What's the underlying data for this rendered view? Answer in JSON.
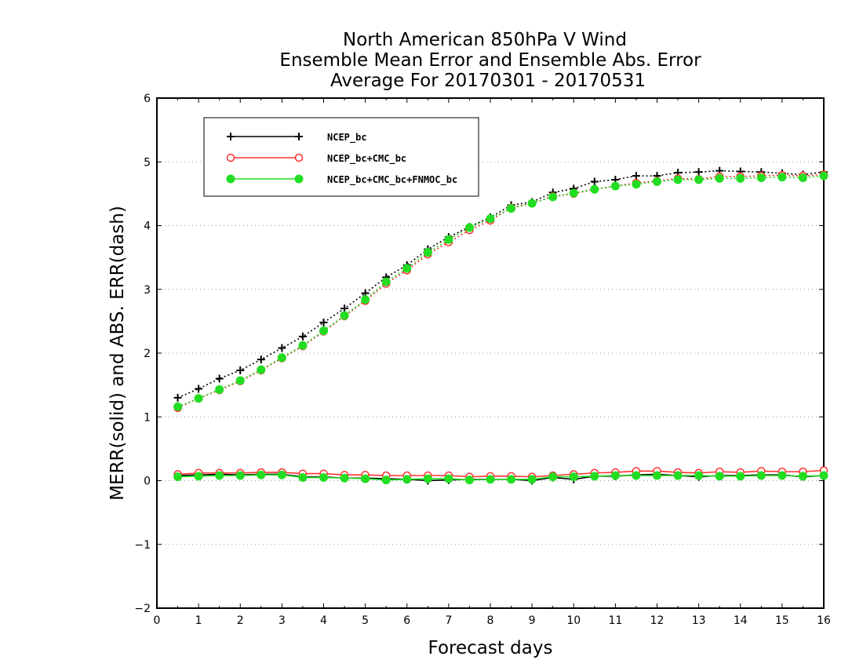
{
  "chart_data": {
    "type": "line",
    "title_lines": [
      "North American 850hPa V Wind",
      "Ensemble Mean Error and Ensemble Abs. Error",
      "Average For 20170301 - 20170531"
    ],
    "xlabel": "Forecast days",
    "ylabel": "MERR(solid) and ABS. ERR(dash)",
    "xlim": [
      0,
      16
    ],
    "ylim": [
      -2,
      6
    ],
    "xticks": [
      "0",
      "1",
      "2",
      "3",
      "4",
      "5",
      "6",
      "7",
      "8",
      "9",
      "10",
      "11",
      "12",
      "13",
      "14",
      "15",
      "16"
    ],
    "yticks": [
      "−2",
      "−1",
      "0",
      "1",
      "2",
      "3",
      "4",
      "5",
      "6"
    ],
    "grid": "horizontal dotted",
    "legend_position": "top-left",
    "x": [
      0.5,
      1,
      1.5,
      2,
      2.5,
      3,
      3.5,
      4,
      4.5,
      5,
      5.5,
      6,
      6.5,
      7,
      7.5,
      8,
      8.5,
      9,
      9.5,
      10,
      10.5,
      11,
      11.5,
      12,
      12.5,
      13,
      13.5,
      14,
      14.5,
      15,
      15.5,
      16
    ],
    "series": [
      {
        "name": "NCEP_bc",
        "color": "#000000",
        "marker": "plus",
        "merr": [
          0.08,
          0.09,
          0.1,
          0.09,
          0.1,
          0.1,
          0.06,
          0.06,
          0.04,
          0.04,
          0.03,
          0.02,
          0.0,
          0.01,
          0.02,
          0.02,
          0.02,
          0.0,
          0.05,
          0.02,
          0.07,
          0.07,
          0.09,
          0.1,
          0.08,
          0.06,
          0.08,
          0.08,
          0.09,
          0.09,
          0.06,
          0.08
        ],
        "abs_err": [
          1.3,
          1.44,
          1.6,
          1.73,
          1.9,
          2.08,
          2.26,
          2.48,
          2.7,
          2.94,
          3.19,
          3.38,
          3.63,
          3.82,
          3.98,
          4.13,
          4.32,
          4.37,
          4.52,
          4.58,
          4.69,
          4.72,
          4.78,
          4.78,
          4.83,
          4.84,
          4.86,
          4.85,
          4.84,
          4.82,
          4.8,
          4.84
        ]
      },
      {
        "name": "NCEP_bc+CMC_bc",
        "color": "#ff3030",
        "marker": "open-circle",
        "merr": [
          0.1,
          0.12,
          0.12,
          0.12,
          0.13,
          0.13,
          0.11,
          0.11,
          0.09,
          0.09,
          0.08,
          0.08,
          0.08,
          0.08,
          0.06,
          0.07,
          0.07,
          0.06,
          0.08,
          0.1,
          0.12,
          0.13,
          0.15,
          0.15,
          0.13,
          0.12,
          0.14,
          0.13,
          0.15,
          0.14,
          0.14,
          0.16
        ],
        "abs_err": [
          1.14,
          1.29,
          1.42,
          1.56,
          1.73,
          1.92,
          2.11,
          2.34,
          2.58,
          2.82,
          3.09,
          3.3,
          3.55,
          3.74,
          3.93,
          4.08,
          4.28,
          4.35,
          4.46,
          4.5,
          4.57,
          4.62,
          4.67,
          4.7,
          4.74,
          4.73,
          4.77,
          4.77,
          4.78,
          4.79,
          4.78,
          4.8
        ]
      },
      {
        "name": "NCEP_bc+CMC_bc+FNMOC_bc",
        "color": "#22dd22",
        "marker": "filled-circle",
        "merr": [
          0.06,
          0.07,
          0.08,
          0.08,
          0.09,
          0.09,
          0.05,
          0.05,
          0.04,
          0.03,
          0.01,
          0.02,
          0.03,
          0.03,
          0.01,
          0.02,
          0.02,
          0.02,
          0.06,
          0.06,
          0.07,
          0.08,
          0.08,
          0.08,
          0.08,
          0.08,
          0.07,
          0.07,
          0.08,
          0.08,
          0.07,
          0.08
        ],
        "abs_err": [
          1.16,
          1.29,
          1.43,
          1.57,
          1.74,
          1.93,
          2.12,
          2.35,
          2.59,
          2.84,
          3.12,
          3.33,
          3.58,
          3.78,
          3.97,
          4.11,
          4.27,
          4.35,
          4.45,
          4.51,
          4.57,
          4.62,
          4.65,
          4.69,
          4.72,
          4.72,
          4.74,
          4.74,
          4.75,
          4.76,
          4.75,
          4.78
        ]
      }
    ]
  }
}
